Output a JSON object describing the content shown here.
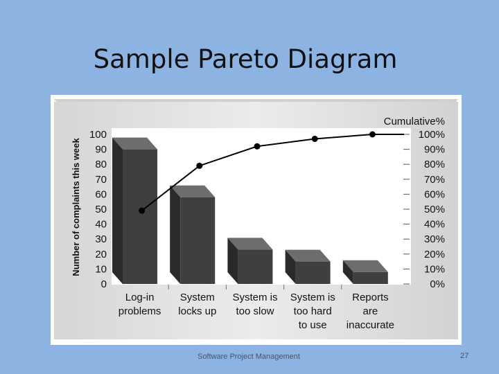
{
  "slide": {
    "title": "Sample Pareto Diagram",
    "footer": "Software Project Management",
    "page_number": "27"
  },
  "colors": {
    "background": "#8db3e2",
    "panel": "#e2e2e2",
    "bar_front": "#3f3f3f",
    "bar_top": "#6d6d6d",
    "bar_side": "#2a2a2a",
    "line": "#000000"
  },
  "chart_data": {
    "type": "bar",
    "categories": [
      [
        "Log-in",
        "problems"
      ],
      [
        "System",
        "locks up"
      ],
      [
        "System is",
        "too slow"
      ],
      [
        "System is",
        "too hard",
        "to use"
      ],
      [
        "Reports",
        "are",
        "inaccurate"
      ]
    ],
    "series": [
      {
        "values": [
          90,
          58,
          23,
          15,
          8
        ]
      },
      {
        "values": [
          49,
          79,
          92,
          97,
          100
        ],
        "axis": "right",
        "type": "line"
      }
    ],
    "ylabel": "Number of complaints this week",
    "y2label": "Cumulative%",
    "ylim": [
      0,
      100
    ],
    "yticks": [
      "0",
      "10",
      "20",
      "30",
      "40",
      "50",
      "60",
      "70",
      "80",
      "90",
      "100"
    ],
    "y2ticks": [
      "0%",
      "10%",
      "20%",
      "30%",
      "40%",
      "50%",
      "60%",
      "70%",
      "80%",
      "90%",
      "100%"
    ],
    "grid": false,
    "legend": "none"
  }
}
